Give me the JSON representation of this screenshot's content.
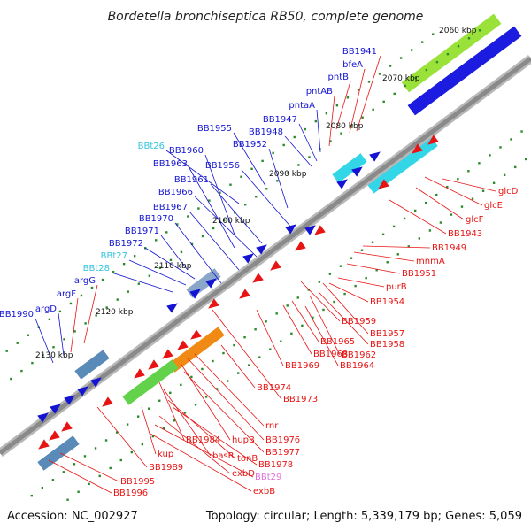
{
  "title": "Bordetella bronchiseptica RB50, complete genome",
  "footer": {
    "accession": "Accession: NC_002927",
    "summary": "Topology: circular; Length: 5,339,179 bp; Genes: 5,059"
  },
  "colors": {
    "forward_gene": "#1414d2",
    "reverse_gene": "#e81414",
    "trna": "#33c4dd",
    "misc_rna": "#e070d8",
    "backbone": "#8a8a8a",
    "tick": "#2a8a2a"
  },
  "kbp_labels": [
    "2060 kbp",
    "2070 kbp",
    "2080 kbp",
    "2090 kbp",
    "2100 kbp",
    "2110 kbp",
    "2120 kbp",
    "2130 kbp"
  ],
  "labels": [
    {
      "text": "BB1941",
      "color": "#1414d2",
      "anchor": "end"
    },
    {
      "text": "bfeA",
      "color": "#1414d2",
      "anchor": "end"
    },
    {
      "text": "pntB",
      "color": "#1414d2",
      "anchor": "end"
    },
    {
      "text": "pntAB",
      "color": "#1414d2",
      "anchor": "end"
    },
    {
      "text": "pntaA",
      "color": "#1414d2",
      "anchor": "end"
    },
    {
      "text": "BB1947",
      "color": "#1414d2",
      "anchor": "end"
    },
    {
      "text": "BB1948",
      "color": "#1414d2",
      "anchor": "end"
    },
    {
      "text": "BB1955",
      "color": "#1414d2",
      "anchor": "end"
    },
    {
      "text": "BB1952",
      "color": "#1414d2",
      "anchor": "end"
    },
    {
      "text": "BBt26",
      "color": "#33c4dd",
      "anchor": "end"
    },
    {
      "text": "BB1960",
      "color": "#1414d2",
      "anchor": "end"
    },
    {
      "text": "BB1956",
      "color": "#1414d2",
      "anchor": "end"
    },
    {
      "text": "BB1963",
      "color": "#1414d2",
      "anchor": "end"
    },
    {
      "text": "BB1961",
      "color": "#1414d2",
      "anchor": "end"
    },
    {
      "text": "BB1966",
      "color": "#1414d2",
      "anchor": "end"
    },
    {
      "text": "BB1967",
      "color": "#1414d2",
      "anchor": "end"
    },
    {
      "text": "BB1970",
      "color": "#1414d2",
      "anchor": "end"
    },
    {
      "text": "BB1971",
      "color": "#1414d2",
      "anchor": "end"
    },
    {
      "text": "BB1972",
      "color": "#1414d2",
      "anchor": "end"
    },
    {
      "text": "BBt27",
      "color": "#33c4dd",
      "anchor": "end"
    },
    {
      "text": "BBt28",
      "color": "#33c4dd",
      "anchor": "end"
    },
    {
      "text": "argG",
      "color": "#1414d2",
      "anchor": "end"
    },
    {
      "text": "argF",
      "color": "#1414d2",
      "anchor": "end"
    },
    {
      "text": "argD",
      "color": "#1414d2",
      "anchor": "end"
    },
    {
      "text": "BB1990",
      "color": "#1414d2",
      "anchor": "end"
    },
    {
      "text": "glcD",
      "color": "#e81414",
      "anchor": "start"
    },
    {
      "text": "glcE",
      "color": "#e81414",
      "anchor": "start"
    },
    {
      "text": "glcF",
      "color": "#e81414",
      "anchor": "start"
    },
    {
      "text": "BB1943",
      "color": "#e81414",
      "anchor": "start"
    },
    {
      "text": "BB1949",
      "color": "#e81414",
      "anchor": "start"
    },
    {
      "text": "mnmA",
      "color": "#e81414",
      "anchor": "start"
    },
    {
      "text": "BB1951",
      "color": "#e81414",
      "anchor": "start"
    },
    {
      "text": "purB",
      "color": "#e81414",
      "anchor": "start"
    },
    {
      "text": "BB1954",
      "color": "#e81414",
      "anchor": "start"
    },
    {
      "text": "BB1959",
      "color": "#e81414",
      "anchor": "start"
    },
    {
      "text": "BB1957",
      "color": "#e81414",
      "anchor": "start"
    },
    {
      "text": "BB1958",
      "color": "#e81414",
      "anchor": "start"
    },
    {
      "text": "BB1965",
      "color": "#e81414",
      "anchor": "start"
    },
    {
      "text": "BB1962",
      "color": "#e81414",
      "anchor": "start"
    },
    {
      "text": "BB1968",
      "color": "#e81414",
      "anchor": "start"
    },
    {
      "text": "BB1964",
      "color": "#e81414",
      "anchor": "start"
    },
    {
      "text": "BB1969",
      "color": "#e81414",
      "anchor": "start"
    },
    {
      "text": "BB1974",
      "color": "#e81414",
      "anchor": "start"
    },
    {
      "text": "BB1973",
      "color": "#e81414",
      "anchor": "start"
    },
    {
      "text": "rnr",
      "color": "#e81414",
      "anchor": "start"
    },
    {
      "text": "BB1976",
      "color": "#e81414",
      "anchor": "start"
    },
    {
      "text": "hupB",
      "color": "#e81414",
      "anchor": "start"
    },
    {
      "text": "BB1977",
      "color": "#e81414",
      "anchor": "start"
    },
    {
      "text": "BB1984",
      "color": "#e81414",
      "anchor": "start"
    },
    {
      "text": "basR",
      "color": "#e81414",
      "anchor": "start"
    },
    {
      "text": "tonB",
      "color": "#e81414",
      "anchor": "start"
    },
    {
      "text": "BB1978",
      "color": "#e81414",
      "anchor": "start"
    },
    {
      "text": "kup",
      "color": "#e81414",
      "anchor": "start"
    },
    {
      "text": "BB1989",
      "color": "#e81414",
      "anchor": "start"
    },
    {
      "text": "exbD",
      "color": "#e81414",
      "anchor": "start"
    },
    {
      "text": "BBt29",
      "color": "#e070d8",
      "anchor": "start"
    },
    {
      "text": "BB1995",
      "color": "#e81414",
      "anchor": "start"
    },
    {
      "text": "exbB",
      "color": "#e81414",
      "anchor": "start"
    },
    {
      "text": "BB1996",
      "color": "#e81414",
      "anchor": "start"
    }
  ]
}
